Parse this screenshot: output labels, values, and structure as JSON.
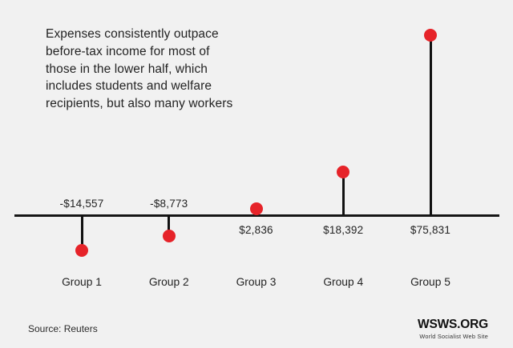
{
  "chart_data": {
    "type": "lollipop",
    "title": "Expenses consistently outpace before-tax income for most of those in the lower half, which includes students and welfare recipients, but also many workers",
    "categories": [
      "Group 1",
      "Group 2",
      "Group 3",
      "Group 4",
      "Group 5"
    ],
    "values": [
      -14557,
      -8773,
      2836,
      18392,
      75831
    ],
    "value_labels": [
      "-$14,557",
      "-$8,773",
      "$2,836",
      "$18,392",
      "$75,831"
    ],
    "unit": "USD",
    "baseline": 0,
    "axis_style": "single horizontal zero line, no ticks, no gridlines",
    "legend": "none",
    "source_note": "Source: Reuters"
  },
  "footer": {
    "logo_title": "WSWS.ORG",
    "logo_subtitle": "World Socialist Web Site"
  },
  "colors": {
    "background": "#f1f1f1",
    "ink": "#232323",
    "accent_red": "#e62329",
    "axis_black": "#161616"
  }
}
